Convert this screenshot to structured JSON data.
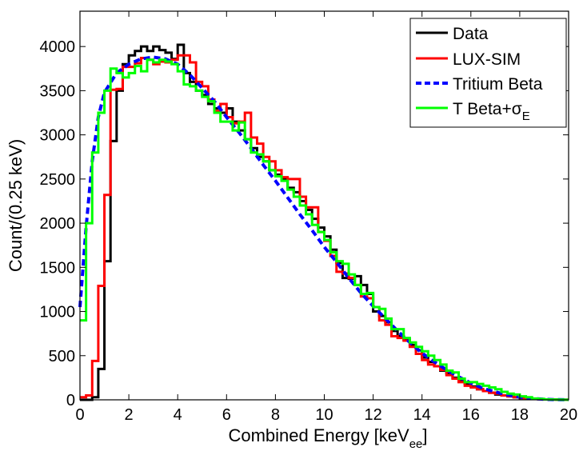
{
  "chart_data": {
    "type": "line",
    "xlabel_main": "Combined Energy [keV",
    "xlabel_sub": "ee",
    "xlabel_end": "]",
    "ylabel": "Count/(0.25 keV)",
    "xlim": [
      0,
      20
    ],
    "ylim": [
      0,
      4400
    ],
    "xticks": [
      0,
      2,
      4,
      6,
      8,
      10,
      12,
      14,
      16,
      18,
      20
    ],
    "yticks": [
      0,
      500,
      1000,
      1500,
      2000,
      2500,
      3000,
      3500,
      4000
    ],
    "grid": false,
    "legend_position": "top-right",
    "series": [
      {
        "name": "Data",
        "color": "#000000",
        "style": "step",
        "x": [
          0,
          0.25,
          0.5,
          0.75,
          1,
          1.25,
          1.5,
          1.75,
          2,
          2.25,
          2.5,
          2.75,
          3,
          3.25,
          3.5,
          3.75,
          4,
          4.25,
          4.5,
          4.75,
          5,
          5.25,
          5.5,
          5.75,
          6,
          6.25,
          6.5,
          6.75,
          7,
          7.25,
          7.5,
          7.75,
          8,
          8.25,
          8.5,
          8.75,
          9,
          9.25,
          9.5,
          9.75,
          10,
          10.25,
          10.5,
          10.75,
          11,
          11.25,
          11.5,
          11.75,
          12,
          12.25,
          12.5,
          12.75,
          13,
          13.25,
          13.5,
          13.75,
          14,
          14.25,
          14.5,
          14.75,
          15,
          15.25,
          15.5,
          15.75,
          16,
          16.25,
          16.5,
          16.75,
          17,
          17.25,
          17.5,
          17.75,
          18,
          18.25,
          18.5,
          18.75,
          19,
          19.25,
          19.5,
          19.75
        ],
        "y": [
          0,
          0,
          30,
          350,
          1570,
          2930,
          3500,
          3800,
          3900,
          3950,
          4000,
          3950,
          4000,
          3960,
          3930,
          3860,
          4020,
          3700,
          3600,
          3500,
          3450,
          3350,
          3300,
          3250,
          3300,
          3150,
          3050,
          2950,
          2850,
          2750,
          2700,
          2600,
          2550,
          2500,
          2400,
          2350,
          2250,
          2150,
          2050,
          1950,
          1850,
          1700,
          1550,
          1380,
          1370,
          1400,
          1300,
          1200,
          1000,
          950,
          880,
          780,
          720,
          680,
          620,
          560,
          480,
          430,
          380,
          330,
          300,
          250,
          210,
          180,
          150,
          120,
          100,
          80,
          60,
          50,
          40,
          30,
          20,
          15,
          10,
          8,
          5,
          3,
          2,
          1
        ]
      },
      {
        "name": "LUX-SIM",
        "color": "#ff0000",
        "style": "step",
        "x": [
          0,
          0.25,
          0.5,
          0.75,
          1,
          1.25,
          1.5,
          1.75,
          2,
          2.25,
          2.5,
          2.75,
          3,
          3.25,
          3.5,
          3.75,
          4,
          4.25,
          4.5,
          4.75,
          5,
          5.25,
          5.5,
          5.75,
          6,
          6.25,
          6.5,
          6.75,
          7,
          7.25,
          7.5,
          7.75,
          8,
          8.25,
          8.5,
          8.75,
          9,
          9.25,
          9.5,
          9.75,
          10,
          10.25,
          10.5,
          10.75,
          11,
          11.25,
          11.5,
          11.75,
          12,
          12.25,
          12.5,
          12.75,
          13,
          13.25,
          13.5,
          13.75,
          14,
          14.25,
          14.5,
          14.75,
          15,
          15.25,
          15.5,
          15.75,
          16,
          16.25,
          16.5,
          16.75,
          17,
          17.25,
          17.5,
          17.75,
          18,
          18.25,
          18.5,
          18.75,
          19,
          19.25,
          19.5,
          19.75
        ],
        "y": [
          30,
          50,
          440,
          1290,
          2320,
          3510,
          3520,
          3770,
          3770,
          3810,
          3870,
          3850,
          3800,
          3830,
          3820,
          3850,
          3900,
          3900,
          3820,
          3600,
          3550,
          3400,
          3270,
          3350,
          3200,
          3130,
          3150,
          3250,
          2970,
          2900,
          2750,
          2700,
          2600,
          2520,
          2500,
          2500,
          2300,
          2180,
          2180,
          1900,
          1800,
          1630,
          1450,
          1430,
          1380,
          1300,
          1170,
          1150,
          1050,
          900,
          850,
          720,
          700,
          670,
          600,
          520,
          450,
          400,
          380,
          340,
          280,
          240,
          200,
          160,
          140,
          120,
          100,
          80,
          70,
          50,
          40,
          30,
          20,
          15,
          10,
          8,
          5,
          3,
          2,
          1
        ]
      },
      {
        "name": "Tritium Beta",
        "color": "#0000ff",
        "style": "dashed",
        "x": [
          0,
          0.25,
          0.5,
          0.75,
          1,
          1.5,
          2,
          2.5,
          3,
          3.5,
          4,
          4.5,
          5,
          5.5,
          6,
          6.5,
          7,
          7.5,
          8,
          8.5,
          9,
          9.5,
          10,
          10.5,
          11,
          11.5,
          12,
          12.5,
          13,
          13.5,
          14,
          14.5,
          15,
          15.5,
          16,
          16.5,
          17,
          17.5,
          18,
          18.5,
          19,
          19.5,
          20
        ],
        "y": [
          1050,
          1950,
          2700,
          3200,
          3480,
          3700,
          3800,
          3860,
          3880,
          3860,
          3800,
          3680,
          3530,
          3380,
          3200,
          3030,
          2850,
          2660,
          2480,
          2290,
          2100,
          1920,
          1730,
          1560,
          1380,
          1210,
          1060,
          920,
          780,
          650,
          530,
          430,
          340,
          260,
          190,
          130,
          90,
          55,
          30,
          15,
          6,
          2,
          0
        ]
      },
      {
        "name": "T Beta+σ",
        "name_sub": "E",
        "color": "#00ff00",
        "style": "step",
        "x": [
          0,
          0.25,
          0.5,
          0.75,
          1,
          1.25,
          1.5,
          1.75,
          2,
          2.25,
          2.5,
          2.75,
          3,
          3.25,
          3.5,
          3.75,
          4,
          4.25,
          4.5,
          4.75,
          5,
          5.25,
          5.5,
          5.75,
          6,
          6.25,
          6.5,
          6.75,
          7,
          7.25,
          7.5,
          7.75,
          8,
          8.25,
          8.5,
          8.75,
          9,
          9.25,
          9.5,
          9.75,
          10,
          10.25,
          10.5,
          10.75,
          11,
          11.25,
          11.5,
          11.75,
          12,
          12.25,
          12.5,
          12.75,
          13,
          13.25,
          13.5,
          13.75,
          14,
          14.25,
          14.5,
          14.75,
          15,
          15.25,
          15.5,
          15.75,
          16,
          16.25,
          16.5,
          16.75,
          17,
          17.25,
          17.5,
          17.75,
          18,
          18.25,
          18.5,
          18.75,
          19,
          19.25,
          19.5,
          19.75
        ],
        "y": [
          900,
          2000,
          2800,
          3250,
          3500,
          3750,
          3700,
          3650,
          3700,
          3780,
          3720,
          3850,
          3820,
          3850,
          3830,
          3800,
          3720,
          3570,
          3550,
          3500,
          3430,
          3380,
          3250,
          3150,
          3150,
          3050,
          3140,
          2950,
          2800,
          2780,
          2700,
          2600,
          2530,
          2480,
          2380,
          2300,
          2200,
          2100,
          1980,
          1900,
          1810,
          1670,
          1570,
          1540,
          1420,
          1300,
          1200,
          1210,
          1050,
          1030,
          920,
          800,
          800,
          700,
          650,
          600,
          550,
          500,
          450,
          400,
          330,
          310,
          240,
          200,
          200,
          180,
          160,
          140,
          120,
          90,
          70,
          60,
          40,
          30,
          15,
          10,
          5,
          3,
          2,
          1
        ]
      }
    ]
  }
}
